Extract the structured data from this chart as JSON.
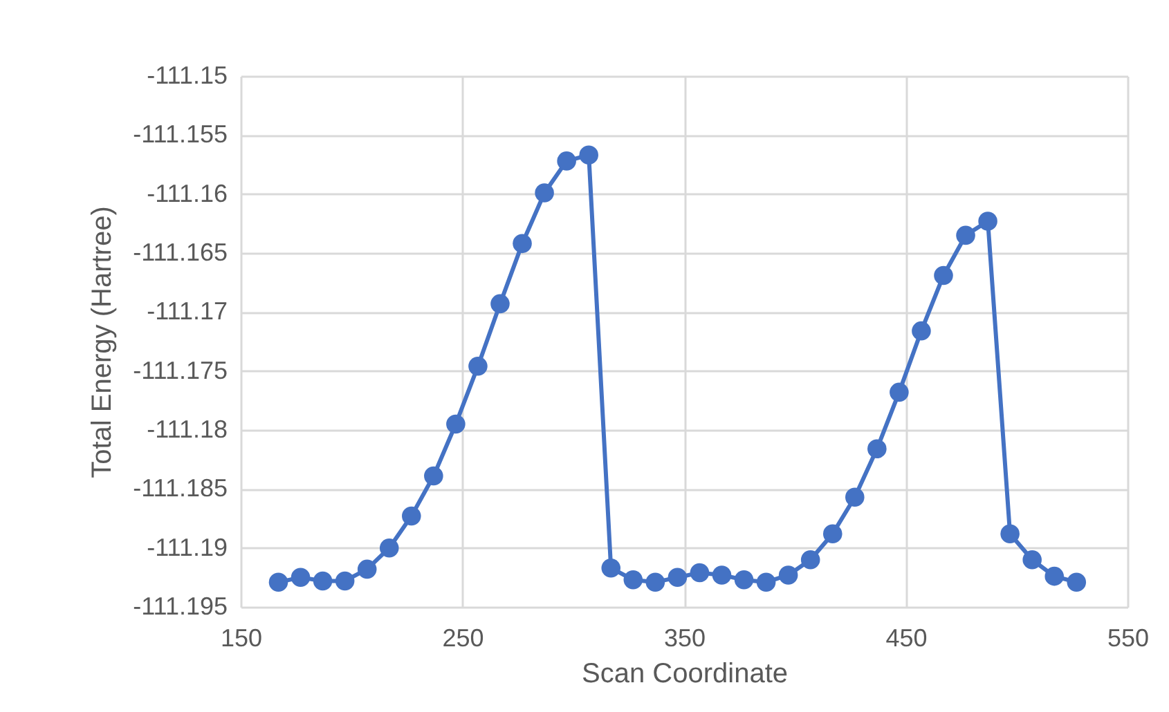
{
  "chart_data": {
    "type": "line",
    "xlabel": "Scan Coordinate",
    "ylabel": "Total Energy (Hartree)",
    "x": [
      167,
      177,
      187,
      197,
      207,
      217,
      227,
      237,
      247,
      257,
      267,
      277,
      287,
      297,
      307,
      317,
      327,
      337,
      347,
      357,
      367,
      377,
      387,
      397,
      407,
      417,
      427,
      437,
      447,
      457,
      467,
      477,
      487,
      497,
      507,
      517,
      527
    ],
    "series": [
      {
        "color": "#4472c4",
        "values": [
          -111.1929,
          -111.1925,
          -111.1928,
          -111.1928,
          -111.1918,
          -111.19,
          -111.1873,
          -111.1839,
          -111.1795,
          -111.1746,
          -111.1693,
          -111.1642,
          -111.1599,
          -111.1572,
          -111.1567,
          -111.1917,
          -111.1927,
          -111.1929,
          -111.1925,
          -111.1921,
          -111.1923,
          -111.1927,
          -111.1929,
          -111.1923,
          -111.191,
          -111.1888,
          -111.1857,
          -111.1816,
          -111.1768,
          -111.1716,
          -111.1669,
          -111.1635,
          -111.1623,
          -111.1888,
          -111.191,
          -111.1924,
          -111.1929
        ]
      }
    ],
    "xlim": [
      150,
      550
    ],
    "xticks": [
      150,
      250,
      350,
      450,
      550
    ],
    "ylim": [
      -111.195,
      -111.15
    ],
    "yticks": [
      -111.195,
      -111.19,
      -111.185,
      -111.18,
      -111.175,
      -111.17,
      -111.165,
      -111.16,
      -111.155,
      -111.15
    ],
    "grid": true,
    "marker": "circle",
    "line_style": "solid"
  }
}
